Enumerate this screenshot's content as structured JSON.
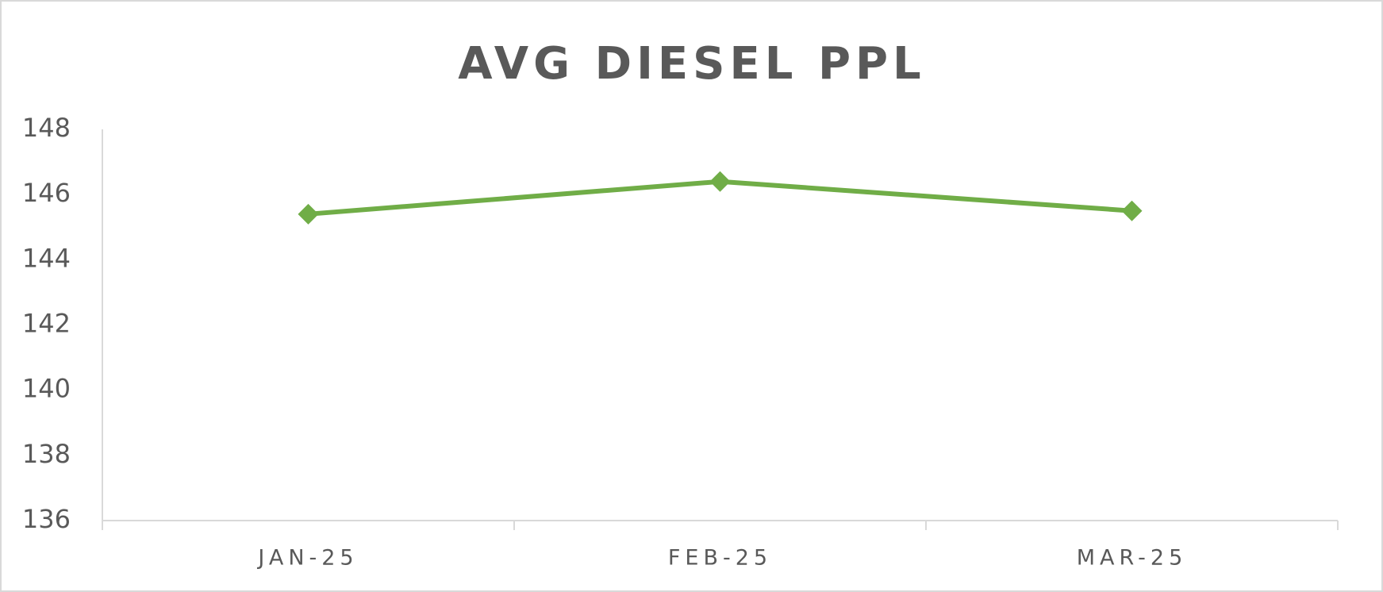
{
  "chart_data": {
    "type": "line",
    "title": "AVG DIESEL PPL",
    "categories": [
      "JAN-25",
      "FEB-25",
      "MAR-25"
    ],
    "values": [
      145.4,
      146.4,
      145.5
    ],
    "color": "#70ad47",
    "ylim": [
      136,
      148
    ],
    "yticks": [
      136,
      138,
      140,
      142,
      144,
      146,
      148
    ],
    "grid": false
  }
}
